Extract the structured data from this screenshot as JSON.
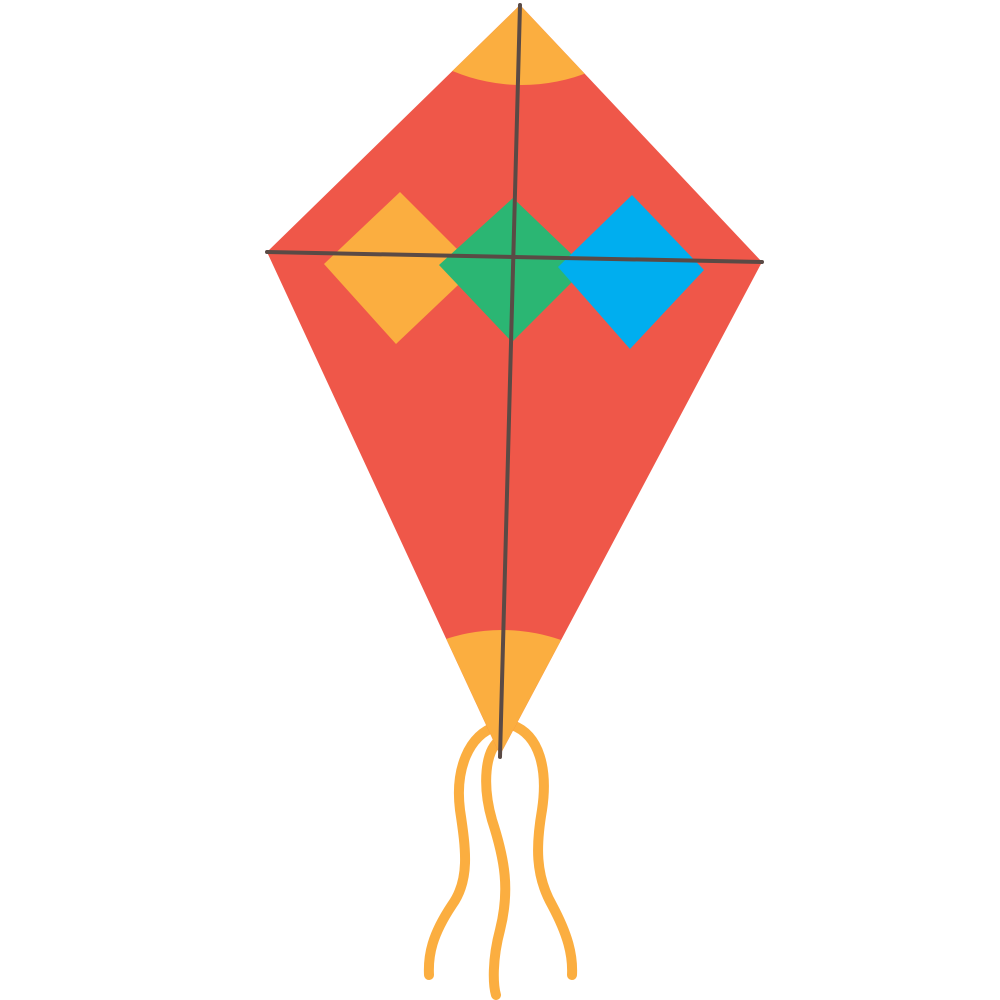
{
  "image": {
    "subject": "kite",
    "text": []
  },
  "colors": {
    "background": "#ffffff",
    "kite_body": "#ef5749",
    "tip_accent": "#fbae40",
    "diamond_left": "#fbae40",
    "diamond_center": "#2bb673",
    "diamond_right": "#00aeef",
    "spars": "#5a4a45",
    "tails": "#fbae40"
  },
  "elements": {
    "kite_body": "kite-body",
    "top_tip": "top-tip-accent",
    "bottom_tip": "bottom-tip-accent",
    "diamonds": [
      "diamond-orange",
      "diamond-green",
      "diamond-blue"
    ],
    "spars": [
      "vertical-spar",
      "horizontal-spar"
    ],
    "tails": [
      "tail-ribbon-left",
      "tail-ribbon-middle",
      "tail-ribbon-right"
    ]
  }
}
